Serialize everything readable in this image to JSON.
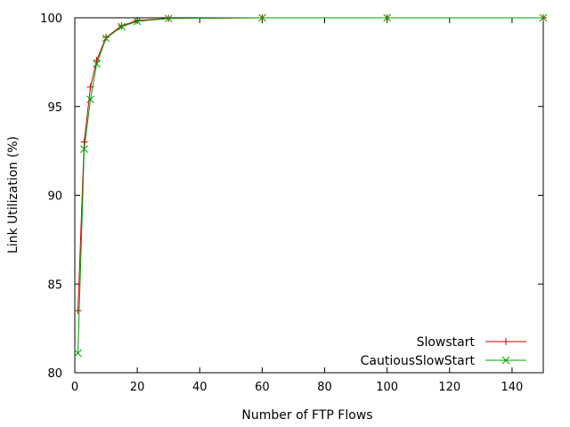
{
  "chart_data": {
    "type": "line",
    "title": "",
    "xlabel": "Number of FTP Flows",
    "ylabel": "Link Utilization (%)",
    "xlim": [
      0,
      150
    ],
    "ylim": [
      80,
      100
    ],
    "xticks": [
      0,
      20,
      40,
      60,
      80,
      100,
      120,
      140
    ],
    "yticks": [
      80,
      85,
      90,
      95,
      100
    ],
    "grid": false,
    "legend_position": "bottom-right",
    "series": [
      {
        "name": "Slowstart",
        "color": "#cc0000",
        "marker": "plus",
        "x": [
          1,
          3,
          5,
          7,
          10,
          15,
          20,
          30,
          60,
          100,
          150
        ],
        "y": [
          83.5,
          93.0,
          96.1,
          97.6,
          98.9,
          99.55,
          99.85,
          99.97,
          100.0,
          100.0,
          100.0
        ]
      },
      {
        "name": "CautiousSlowStart",
        "color": "#00a000",
        "marker": "x",
        "x": [
          1,
          3,
          5,
          7,
          10,
          15,
          20,
          30,
          60,
          100,
          150
        ],
        "y": [
          81.1,
          92.6,
          95.4,
          97.4,
          98.85,
          99.5,
          99.8,
          99.96,
          100.0,
          100.0,
          100.0
        ]
      }
    ]
  }
}
